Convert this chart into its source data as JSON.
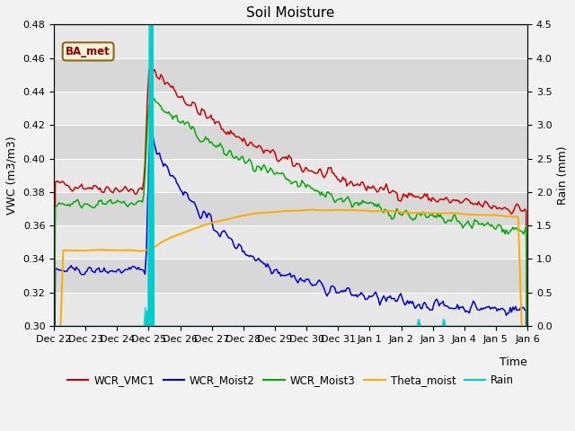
{
  "title": "Soil Moisture",
  "ylabel_left": "VWC (m3/m3)",
  "ylabel_right": "Rain (mm)",
  "xlabel": "Time",
  "annotation": "BA_met",
  "ylim_left": [
    0.3,
    0.48
  ],
  "ylim_right": [
    0.0,
    4.5
  ],
  "yticks_left": [
    0.3,
    0.32,
    0.34,
    0.36,
    0.38,
    0.4,
    0.42,
    0.44,
    0.46,
    0.48
  ],
  "yticks_right": [
    0.0,
    0.5,
    1.0,
    1.5,
    2.0,
    2.5,
    3.0,
    3.5,
    4.0,
    4.5
  ],
  "colors": {
    "WCR_VMC1": "#cc0000",
    "WCR_Moist2": "#0000cc",
    "WCR_Moist3": "#00aa00",
    "Theta_moist": "#ffaa00",
    "Rain": "#00cccc"
  },
  "background_color": "#e8e8e8",
  "plot_bg_odd": "#e8e8e8",
  "plot_bg_even": "#d8d8d8",
  "grid_color": "#ffffff",
  "title_fontsize": 11,
  "axis_fontsize": 9,
  "tick_fontsize": 8,
  "n_days": 15,
  "event_day": 3.0,
  "xtick_labels": [
    "Dec 22",
    "Dec 23",
    "Dec 24",
    "Dec 25",
    "Dec 26",
    "Dec 27",
    "Dec 28",
    "Dec 29",
    "Dec 30",
    "Dec 31",
    "Jan 1",
    "Jan 2",
    "Jan 3",
    "Jan 4",
    "Jan 5",
    "Jan 6"
  ]
}
